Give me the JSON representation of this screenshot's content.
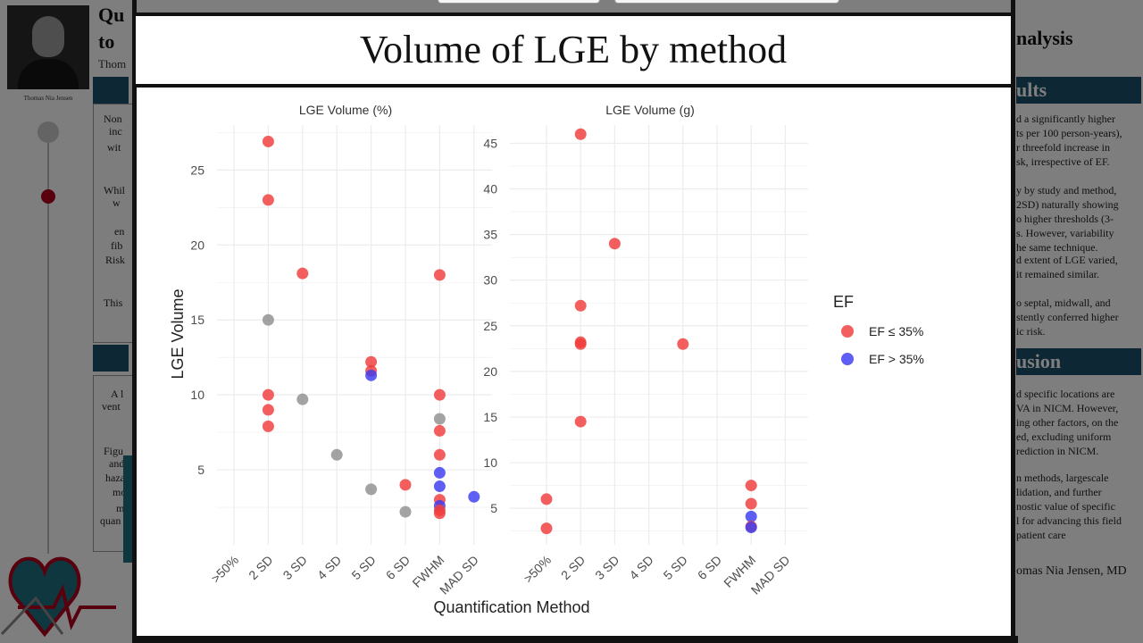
{
  "poster": {
    "title_fragment_1": "Qu",
    "title_fragment_2": "to",
    "author_fragment": "Thom",
    "photo_caption": "Thomas Nia Jensen",
    "right_title_fragment": "nalysis",
    "results_fragment": "ults",
    "conclusion_fragment": "usion",
    "signature": "omas Nia Jensen, MD",
    "left_text_lines": [
      "Non",
      "inc",
      "wit",
      "Whil",
      "w",
      "en",
      "fib",
      "Risk",
      "This",
      "A l",
      "vent",
      "Figu",
      "and",
      "haza",
      "mo",
      "m",
      "quan"
    ],
    "right_text_lines": [
      "d a significantly higher",
      "ts per 100 person-years),",
      "r threefold increase in",
      "sk, irrespective of EF.",
      "y by study and method,",
      "2SD) naturally showing",
      "o higher thresholds (3-",
      "s. However, variability",
      "he same technique.",
      "d extent of LGE varied,",
      "it remained similar.",
      "o septal, midwall, and",
      "stently conferred higher",
      "ic risk.",
      "d specific locations are",
      "VA in NICM. However,",
      "ing other factors, on the",
      "ed, excluding uniform",
      "rediction in NICM.",
      "n methods, largescale",
      "lidation, and further",
      "nostic value of specific",
      "l for advancing this field",
      "patient care"
    ]
  },
  "modal": {
    "title": "Volume of LGE by method"
  },
  "colors": {
    "ef_low": "#f03c3c",
    "ef_high": "#3c3cf0",
    "other": "#8f8f8f",
    "grid": "#ececec",
    "axis_text": "#4d4d4d"
  },
  "chart_data": {
    "type": "scatter",
    "xlabel": "Quantification Method",
    "ylabel": "LGE Volume",
    "legend": {
      "title": "EF",
      "placement": "right",
      "entries": [
        {
          "label": "EF ≤ 35%",
          "color_key": "ef_low"
        },
        {
          "label": "EF > 35%",
          "color_key": "ef_high"
        }
      ]
    },
    "categories": [
      ">50%",
      "2 SD",
      "3 SD",
      "4 SD",
      "5 SD",
      "6 SD",
      "FWHM",
      "MAD SD"
    ],
    "panels": [
      {
        "title": "LGE Volume (%)",
        "ylim": [
          0,
          28
        ],
        "yticks": [
          5,
          10,
          15,
          20,
          25
        ],
        "points": [
          {
            "x": "2 SD",
            "y": 26.9,
            "group": "ef_low"
          },
          {
            "x": "2 SD",
            "y": 23.0,
            "group": "ef_low"
          },
          {
            "x": "2 SD",
            "y": 15.0,
            "group": "other"
          },
          {
            "x": "2 SD",
            "y": 10.0,
            "group": "ef_low"
          },
          {
            "x": "2 SD",
            "y": 9.0,
            "group": "ef_low"
          },
          {
            "x": "2 SD",
            "y": 7.9,
            "group": "ef_low"
          },
          {
            "x": "3 SD",
            "y": 18.1,
            "group": "ef_low"
          },
          {
            "x": "3 SD",
            "y": 9.7,
            "group": "other"
          },
          {
            "x": "4 SD",
            "y": 6.0,
            "group": "other"
          },
          {
            "x": "5 SD",
            "y": 12.2,
            "group": "ef_low"
          },
          {
            "x": "5 SD",
            "y": 11.6,
            "group": "ef_low"
          },
          {
            "x": "5 SD",
            "y": 11.3,
            "group": "ef_high"
          },
          {
            "x": "5 SD",
            "y": 3.7,
            "group": "other"
          },
          {
            "x": "6 SD",
            "y": 4.0,
            "group": "ef_low"
          },
          {
            "x": "6 SD",
            "y": 2.2,
            "group": "other"
          },
          {
            "x": "FWHM",
            "y": 18.0,
            "group": "ef_low"
          },
          {
            "x": "FWHM",
            "y": 10.0,
            "group": "ef_low"
          },
          {
            "x": "FWHM",
            "y": 8.4,
            "group": "other"
          },
          {
            "x": "FWHM",
            "y": 7.6,
            "group": "ef_low"
          },
          {
            "x": "FWHM",
            "y": 6.0,
            "group": "ef_low"
          },
          {
            "x": "FWHM",
            "y": 4.8,
            "group": "ef_high"
          },
          {
            "x": "FWHM",
            "y": 3.9,
            "group": "ef_high"
          },
          {
            "x": "FWHM",
            "y": 3.0,
            "group": "ef_low"
          },
          {
            "x": "FWHM",
            "y": 2.6,
            "group": "ef_high"
          },
          {
            "x": "FWHM",
            "y": 2.3,
            "group": "ef_low"
          },
          {
            "x": "FWHM",
            "y": 2.1,
            "group": "ef_low"
          },
          {
            "x": "MAD SD",
            "y": 3.2,
            "group": "ef_high"
          }
        ]
      },
      {
        "title": "LGE Volume (g)",
        "ylim": [
          1,
          47
        ],
        "yticks": [
          5,
          10,
          15,
          20,
          25,
          30,
          35,
          40,
          45
        ],
        "points": [
          {
            "x": ">50%",
            "y": 6.0,
            "group": "ef_low"
          },
          {
            "x": ">50%",
            "y": 2.8,
            "group": "ef_low"
          },
          {
            "x": "2 SD",
            "y": 46.0,
            "group": "ef_low"
          },
          {
            "x": "2 SD",
            "y": 27.2,
            "group": "ef_low"
          },
          {
            "x": "2 SD",
            "y": 23.2,
            "group": "ef_low"
          },
          {
            "x": "2 SD",
            "y": 23.0,
            "group": "ef_low"
          },
          {
            "x": "2 SD",
            "y": 14.5,
            "group": "ef_low"
          },
          {
            "x": "3 SD",
            "y": 34.0,
            "group": "ef_low"
          },
          {
            "x": "5 SD",
            "y": 23.0,
            "group": "ef_low"
          },
          {
            "x": "FWHM",
            "y": 7.5,
            "group": "ef_low"
          },
          {
            "x": "FWHM",
            "y": 5.5,
            "group": "ef_low"
          },
          {
            "x": "FWHM",
            "y": 4.1,
            "group": "ef_high"
          },
          {
            "x": "FWHM",
            "y": 3.0,
            "group": "ef_low"
          },
          {
            "x": "FWHM",
            "y": 2.9,
            "group": "ef_high"
          }
        ]
      }
    ]
  }
}
